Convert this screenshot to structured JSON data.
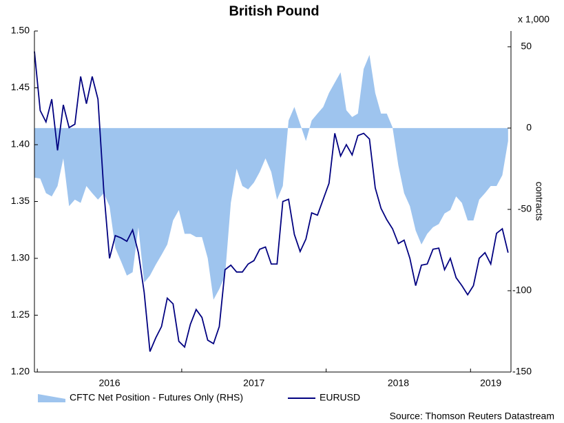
{
  "chart_data": {
    "type": "line",
    "title": "British Pound",
    "y2_unit": "x 1,000",
    "y2_label": "contracts",
    "source": "Source: Thomson Reuters Datastream",
    "x": [
      2015.98,
      2016.02,
      2016.06,
      2016.1,
      2016.14,
      2016.18,
      2016.22,
      2016.26,
      2016.3,
      2016.34,
      2016.38,
      2016.42,
      2016.46,
      2016.5,
      2016.54,
      2016.58,
      2016.62,
      2016.66,
      2016.7,
      2016.74,
      2016.78,
      2016.82,
      2016.86,
      2016.9,
      2016.94,
      2016.98,
      2017.02,
      2017.06,
      2017.1,
      2017.14,
      2017.18,
      2017.22,
      2017.26,
      2017.3,
      2017.34,
      2017.38,
      2017.42,
      2017.46,
      2017.5,
      2017.54,
      2017.58,
      2017.62,
      2017.66,
      2017.7,
      2017.74,
      2017.78,
      2017.82,
      2017.86,
      2017.9,
      2017.94,
      2017.98,
      2018.02,
      2018.06,
      2018.1,
      2018.14,
      2018.18,
      2018.22,
      2018.26,
      2018.3,
      2018.34,
      2018.38,
      2018.42,
      2018.46,
      2018.5,
      2018.54,
      2018.58,
      2018.62,
      2018.66,
      2018.7,
      2018.74,
      2018.78,
      2018.82,
      2018.86,
      2018.9,
      2018.94,
      2018.98,
      2019.02,
      2019.06,
      2019.1,
      2019.14,
      2019.18,
      2019.22,
      2019.26
    ],
    "series": [
      {
        "name": "CFTC Net Position - Futures Only (RHS)",
        "type": "area",
        "axis": "y2",
        "color": "#9ec4ee",
        "values": [
          -30.5,
          -31,
          -40,
          -42,
          -35.6,
          -18.6,
          -48,
          -44,
          -46,
          -35.6,
          -40,
          -44,
          -40,
          -48,
          -73.7,
          -82,
          -90.7,
          -88.6,
          -61,
          -95,
          -90.7,
          -84,
          -78,
          -71.6,
          -56.8,
          -50.4,
          -65,
          -65,
          -67,
          -67,
          -80,
          -105.5,
          -99,
          -90.7,
          -46,
          -25,
          -35.6,
          -37.7,
          -33.5,
          -27,
          -18.6,
          -27,
          -44,
          -35.6,
          4.7,
          13,
          2.5,
          -8,
          4.7,
          8.9,
          13,
          21.6,
          28,
          34.3,
          11,
          6.8,
          8.9,
          36.4,
          45,
          21.6,
          8.9,
          8.9,
          0.4,
          -22.9,
          -40,
          -48,
          -63,
          -71.6,
          -65,
          -61,
          -59,
          -52.5,
          -50.4,
          -42,
          -46,
          -56.8,
          -56.8,
          -44,
          -40,
          -35.6,
          -35.6,
          -29,
          -8
        ]
      },
      {
        "name": "EURUSD",
        "color": "#000080",
        "values": [
          1.482,
          1.43,
          1.42,
          1.44,
          1.395,
          1.435,
          1.415,
          1.418,
          1.46,
          1.436,
          1.46,
          1.44,
          1.36,
          1.3,
          1.32,
          1.318,
          1.315,
          1.325,
          1.305,
          1.27,
          1.218,
          1.23,
          1.24,
          1.265,
          1.26,
          1.227,
          1.222,
          1.242,
          1.255,
          1.248,
          1.228,
          1.225,
          1.24,
          1.29,
          1.294,
          1.288,
          1.288,
          1.295,
          1.298,
          1.308,
          1.31,
          1.295,
          1.295,
          1.35,
          1.352,
          1.321,
          1.306,
          1.317,
          1.34,
          1.338,
          1.352,
          1.366,
          1.41,
          1.39,
          1.4,
          1.391,
          1.408,
          1.41,
          1.405,
          1.362,
          1.344,
          1.334,
          1.326,
          1.313,
          1.316,
          1.3,
          1.276,
          1.294,
          1.295,
          1.308,
          1.309,
          1.29,
          1.3,
          1.283,
          1.276,
          1.268,
          1.276,
          1.3,
          1.305,
          1.295,
          1.322,
          1.326,
          1.305
        ]
      }
    ],
    "xlim": [
      2015.98,
      2019.28
    ],
    "xticks": [
      2016,
      2017,
      2018,
      2019
    ],
    "ylim": [
      1.2,
      1.5
    ],
    "yticks": [
      {
        "value": 1.2,
        "label": "1.20"
      },
      1.25,
      {
        "value": 1.3,
        "label": "1.30"
      },
      1.35,
      {
        "value": 1.4,
        "label": "1.40"
      },
      1.45,
      {
        "value": 1.5,
        "label": "1.50"
      }
    ],
    "y2lim": [
      -150,
      59.7
    ],
    "y2ticks": [
      -150,
      -100,
      -50,
      0,
      50
    ]
  }
}
